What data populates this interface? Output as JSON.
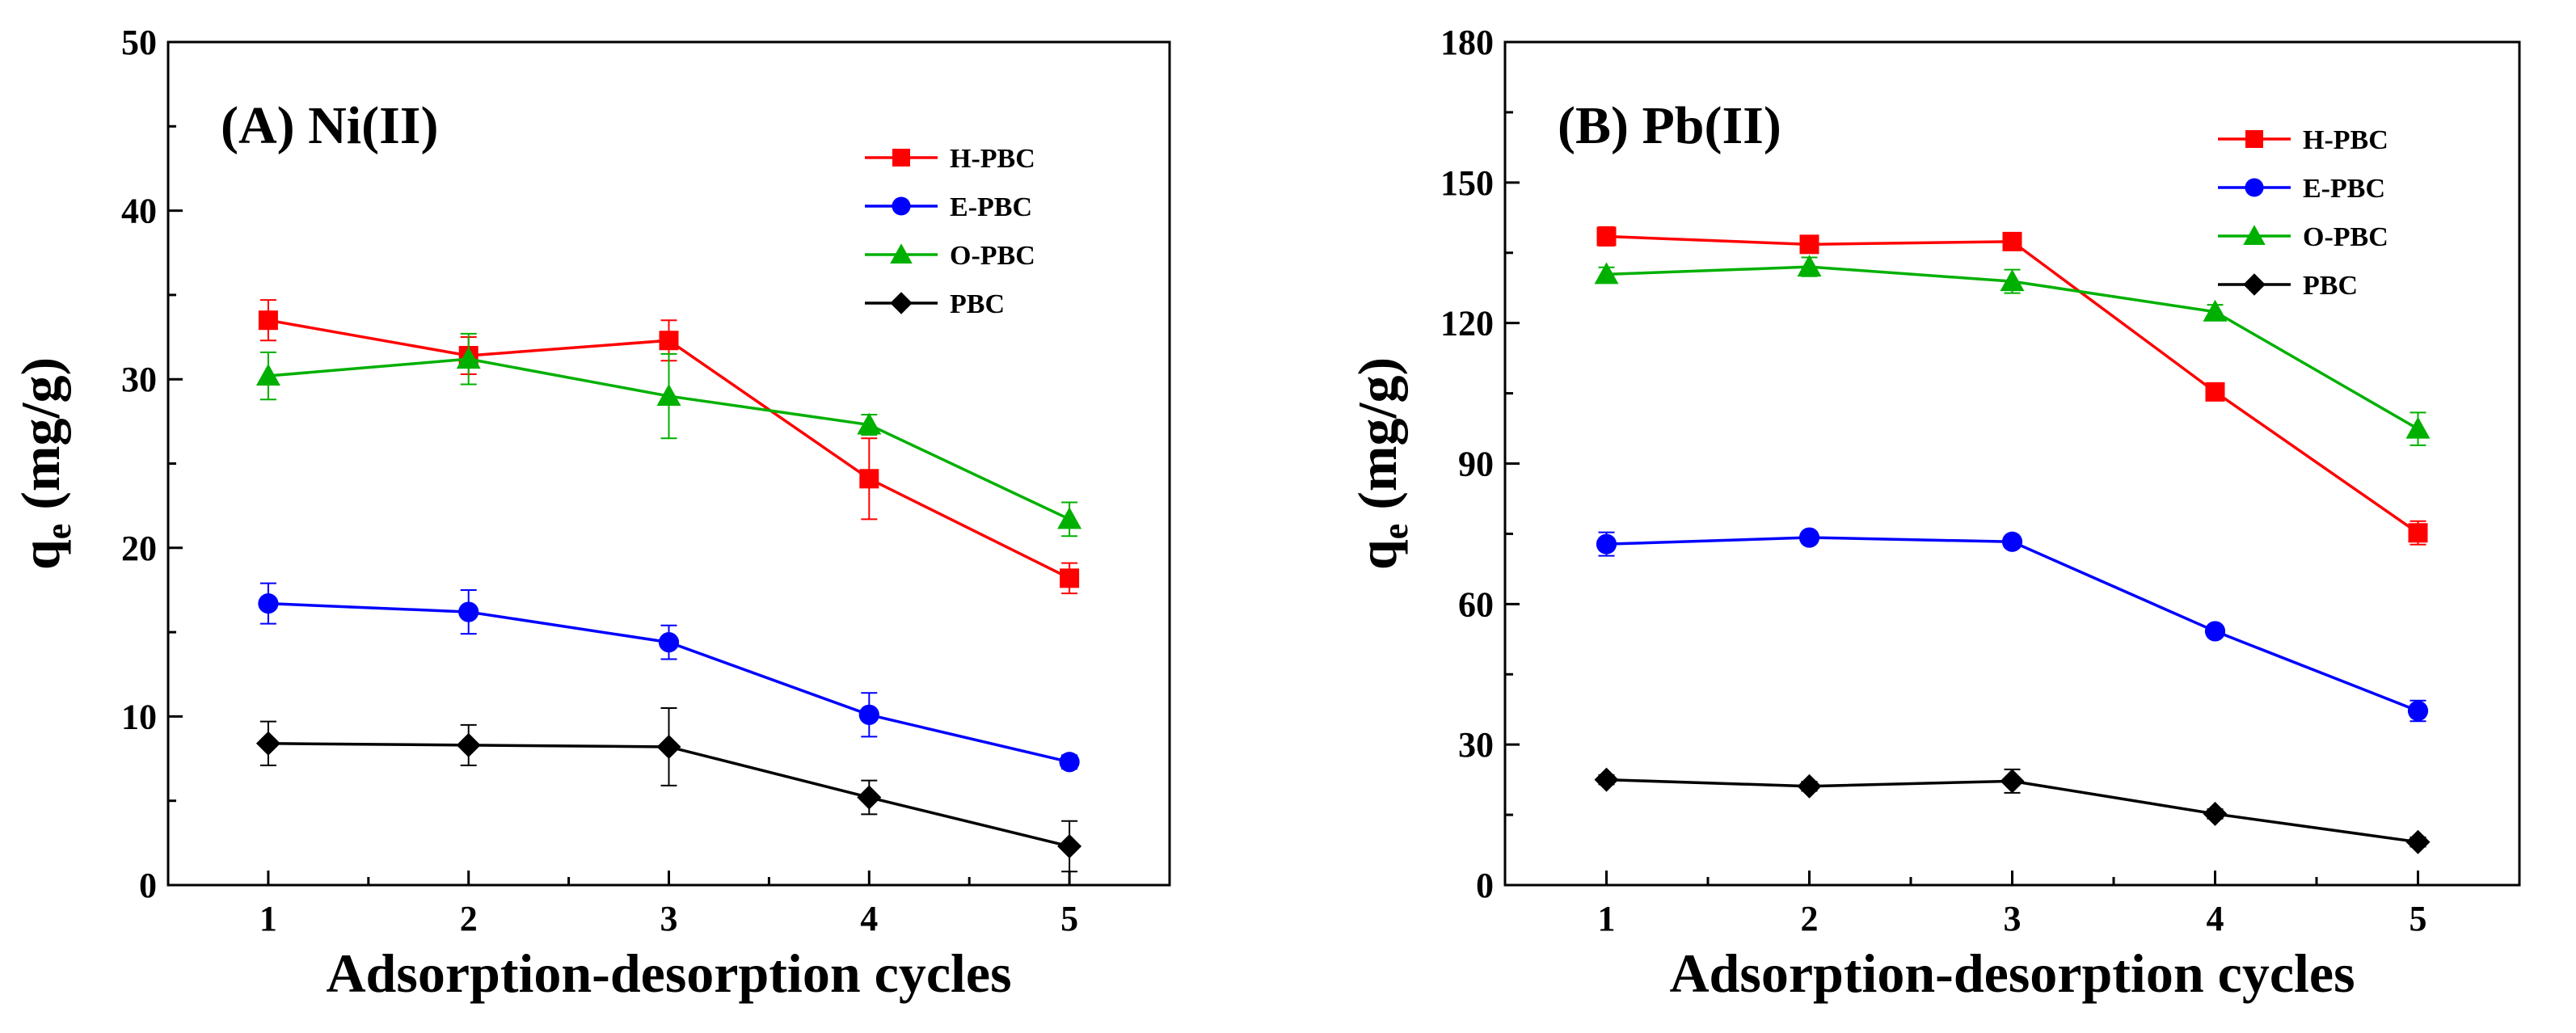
{
  "chart_data": [
    {
      "type": "line",
      "title": "(A) Ni(II)",
      "xlabel": "Adsorption-desorption cycles",
      "ylabel_main": "q",
      "ylabel_sub": "e",
      "ylabel_unit": "(mg/g)",
      "x": [
        1,
        2,
        3,
        4,
        5
      ],
      "x_tick_labels": [
        "1",
        "2",
        "3",
        "4",
        "5"
      ],
      "xlim": [
        0.5,
        5.5
      ],
      "ylim": [
        0,
        50
      ],
      "y_ticks": [
        0,
        10,
        20,
        30,
        40,
        50
      ],
      "y_tick_labels": [
        "0",
        "10",
        "20",
        "30",
        "40",
        "50"
      ],
      "legend_position": "top-right",
      "series": [
        {
          "name": "H-PBC",
          "color": "#ff0000",
          "marker": "square",
          "values": [
            33.5,
            31.4,
            32.3,
            24.1,
            18.2
          ],
          "errors": [
            1.2,
            1.1,
            1.2,
            2.4,
            0.9
          ]
        },
        {
          "name": "E-PBC",
          "color": "#0000ff",
          "marker": "circle",
          "values": [
            16.7,
            16.2,
            14.4,
            10.1,
            7.3
          ],
          "errors": [
            1.2,
            1.3,
            1.0,
            1.3,
            0.4
          ]
        },
        {
          "name": "O-PBC",
          "color": "#00b000",
          "marker": "triangle",
          "values": [
            30.2,
            31.2,
            29.0,
            27.3,
            21.7
          ],
          "errors": [
            1.4,
            1.5,
            2.5,
            0.6,
            1.0
          ]
        },
        {
          "name": "PBC",
          "color": "#000000",
          "marker": "diamond",
          "values": [
            8.4,
            8.3,
            8.2,
            5.2,
            2.3
          ],
          "errors": [
            1.3,
            1.2,
            2.3,
            1.0,
            1.5
          ]
        }
      ]
    },
    {
      "type": "line",
      "title": "(B) Pb(II)",
      "xlabel": "Adsorption-desorption cycles",
      "ylabel_main": "q",
      "ylabel_sub": "e",
      "ylabel_unit": "(mg/g)",
      "x": [
        1,
        2,
        3,
        4,
        5
      ],
      "x_tick_labels": [
        "1",
        "2",
        "3",
        "4",
        "5"
      ],
      "xlim": [
        0.5,
        5.5
      ],
      "ylim": [
        0,
        180
      ],
      "y_ticks": [
        0,
        30,
        60,
        90,
        120,
        150,
        180
      ],
      "y_tick_labels": [
        "0",
        "30",
        "60",
        "90",
        "120",
        "150",
        "180"
      ],
      "legend_position": "top-right",
      "series": [
        {
          "name": "H-PBC",
          "color": "#ff0000",
          "marker": "square",
          "values": [
            138.5,
            136.8,
            137.4,
            105.3,
            75.2
          ],
          "errors": [
            2.0,
            1.2,
            1.2,
            1.2,
            2.5
          ]
        },
        {
          "name": "E-PBC",
          "color": "#0000ff",
          "marker": "circle",
          "values": [
            72.8,
            74.2,
            73.3,
            54.2,
            37.2
          ],
          "errors": [
            2.5,
            1.2,
            1.2,
            1.2,
            2.2
          ]
        },
        {
          "name": "O-PBC",
          "color": "#00b000",
          "marker": "triangle",
          "values": [
            130.4,
            132.0,
            128.9,
            122.4,
            97.4
          ],
          "errors": [
            1.5,
            2.0,
            2.5,
            1.5,
            3.5
          ]
        },
        {
          "name": "PBC",
          "color": "#000000",
          "marker": "diamond",
          "values": [
            22.5,
            21.1,
            22.2,
            15.2,
            9.2
          ],
          "errors": [
            1.0,
            1.0,
            2.5,
            1.0,
            1.0
          ]
        }
      ]
    }
  ]
}
